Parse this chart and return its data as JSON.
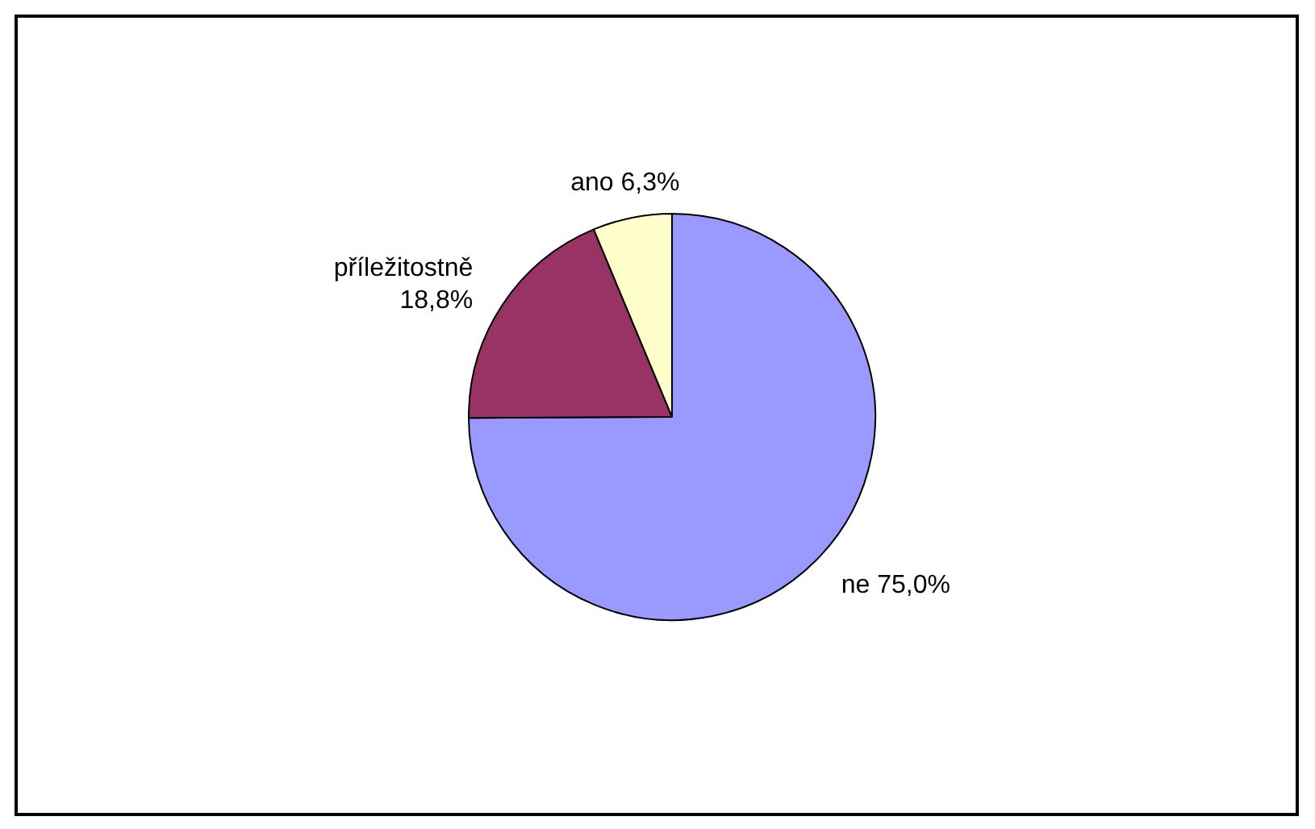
{
  "chart_data": {
    "type": "pie",
    "categories": [
      "ne",
      "příležitostně",
      "ano"
    ],
    "values": [
      75.0,
      18.8,
      6.3
    ],
    "colors": [
      "#9999ff",
      "#993366",
      "#ffffcc"
    ],
    "value_labels": [
      "75,0%",
      "18,8%",
      "6,3%"
    ],
    "legend": false
  }
}
